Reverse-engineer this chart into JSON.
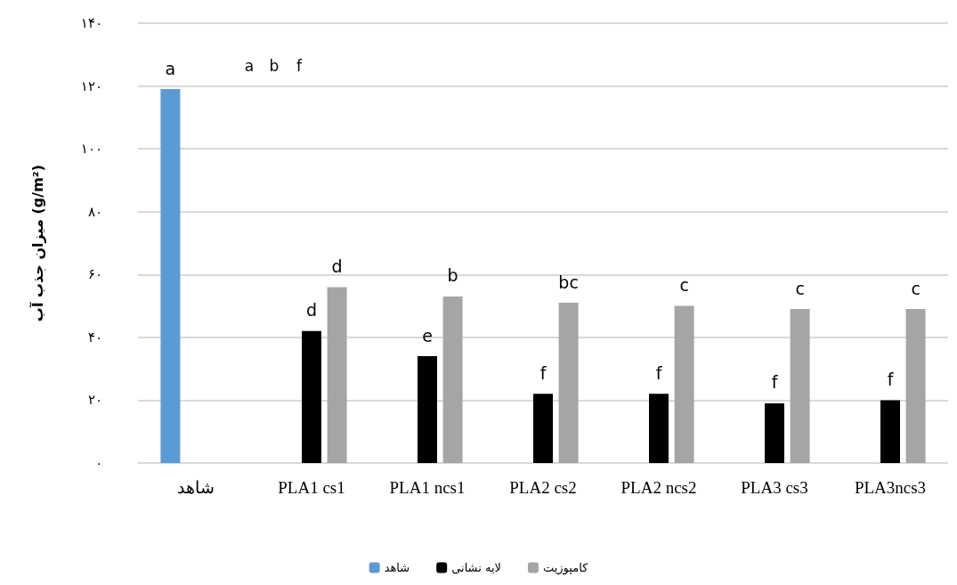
{
  "chart_data": {
    "type": "bar",
    "ylabel": "میزان جذب آب (g/m²)",
    "categories": [
      "شاهد",
      "PLA1 cs1",
      "PLA1 ncs1",
      "PLA2 cs2",
      "PLA2 ncs2",
      "PLA3 cs3",
      "PLA3ncs3"
    ],
    "series": [
      {
        "name": "شاهد",
        "color": "#5b9bd5",
        "values": [
          119,
          null,
          null,
          null,
          null,
          null,
          null
        ],
        "value_labels": [
          "a",
          null,
          null,
          null,
          null,
          null,
          null
        ]
      },
      {
        "name": "لایه نشانی",
        "color": "#000000",
        "values": [
          null,
          42,
          34,
          22,
          22,
          19,
          20
        ],
        "value_labels": [
          null,
          "d",
          "e",
          "f",
          "f",
          "f",
          "f"
        ]
      },
      {
        "name": "کامپوزیت",
        "color": "#a5a5a5",
        "values": [
          null,
          56,
          53,
          51,
          50,
          49,
          49
        ],
        "value_labels": [
          null,
          "d",
          "b",
          "bc",
          "c",
          "c",
          "c"
        ]
      }
    ],
    "ylim": [
      0,
      140
    ],
    "yticks": [
      {
        "value": 0,
        "label": "۰"
      },
      {
        "value": 20,
        "label": "۲۰"
      },
      {
        "value": 40,
        "label": "۴۰"
      },
      {
        "value": 60,
        "label": "۶۰"
      },
      {
        "value": 80,
        "label": "۸۰"
      },
      {
        "value": 100,
        "label": "۱۰۰"
      },
      {
        "value": 120,
        "label": "۱۲۰"
      },
      {
        "value": 140,
        "label": "۱۴۰"
      }
    ],
    "grid": "y",
    "legend": "bottom",
    "annotations": [
      "a",
      "b",
      "f"
    ]
  }
}
